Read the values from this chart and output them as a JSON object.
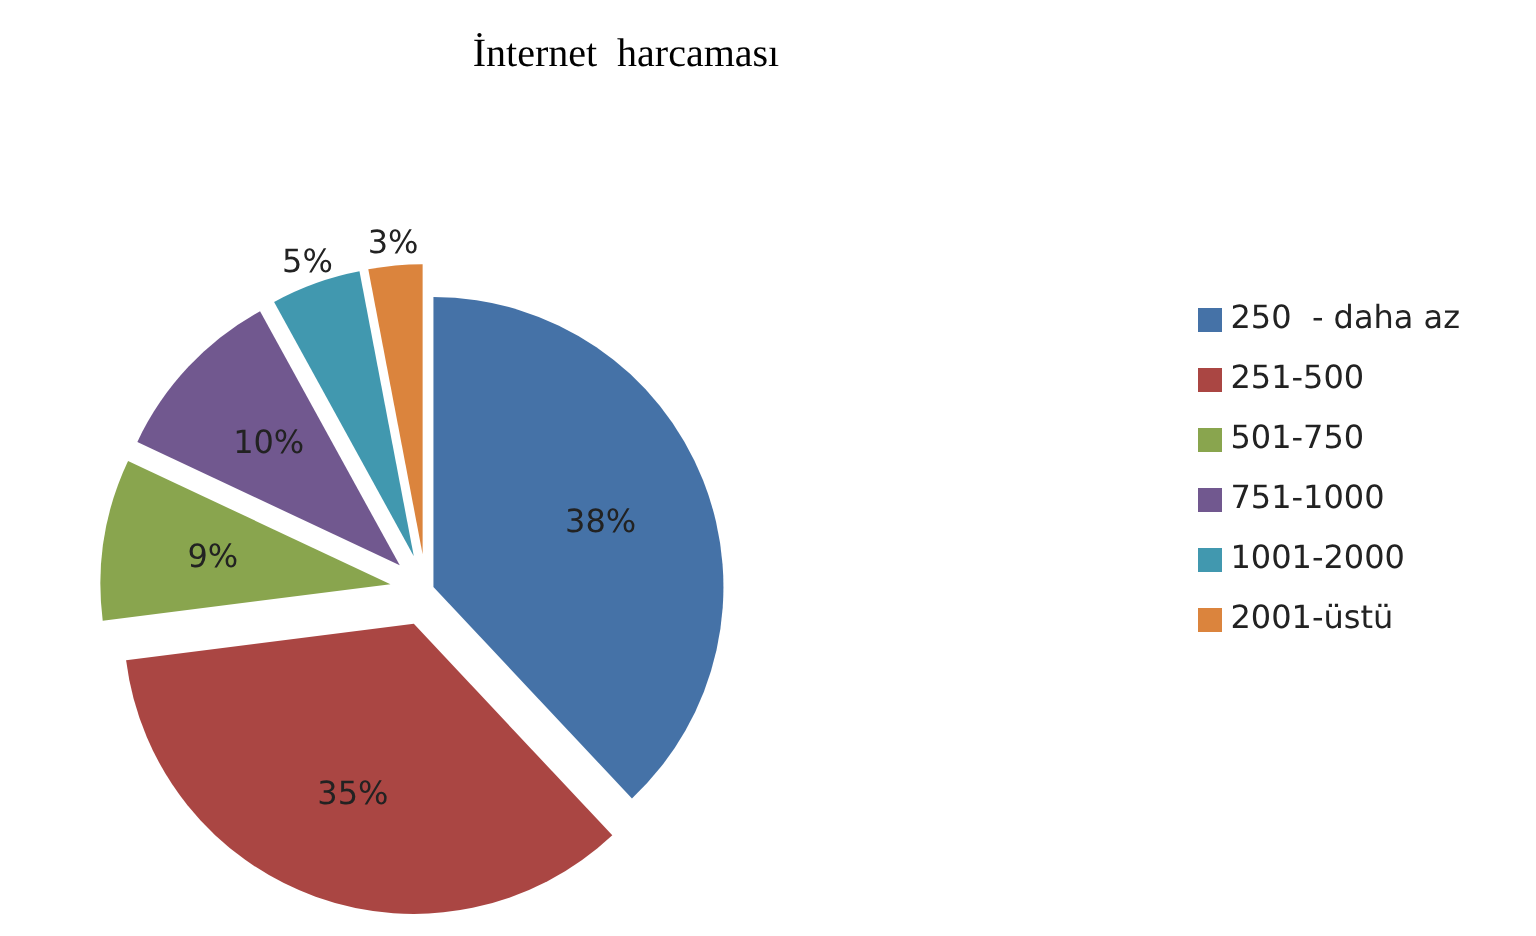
{
  "chart_data": {
    "type": "pie",
    "title": "İnternet  harcaması",
    "categories": [
      "250  - daha az",
      "251-500",
      "501-750",
      "751-1000",
      "1001-2000",
      "2001-üstü"
    ],
    "values": [
      38,
      35,
      9,
      10,
      5,
      3
    ],
    "value_labels": [
      "38%",
      "35%",
      "9%",
      "10%",
      "5%",
      "3%"
    ],
    "colors": [
      "#4572a7",
      "#aa4643",
      "#89a54e",
      "#71588f",
      "#4198af",
      "#db843d"
    ],
    "legend": "right"
  }
}
